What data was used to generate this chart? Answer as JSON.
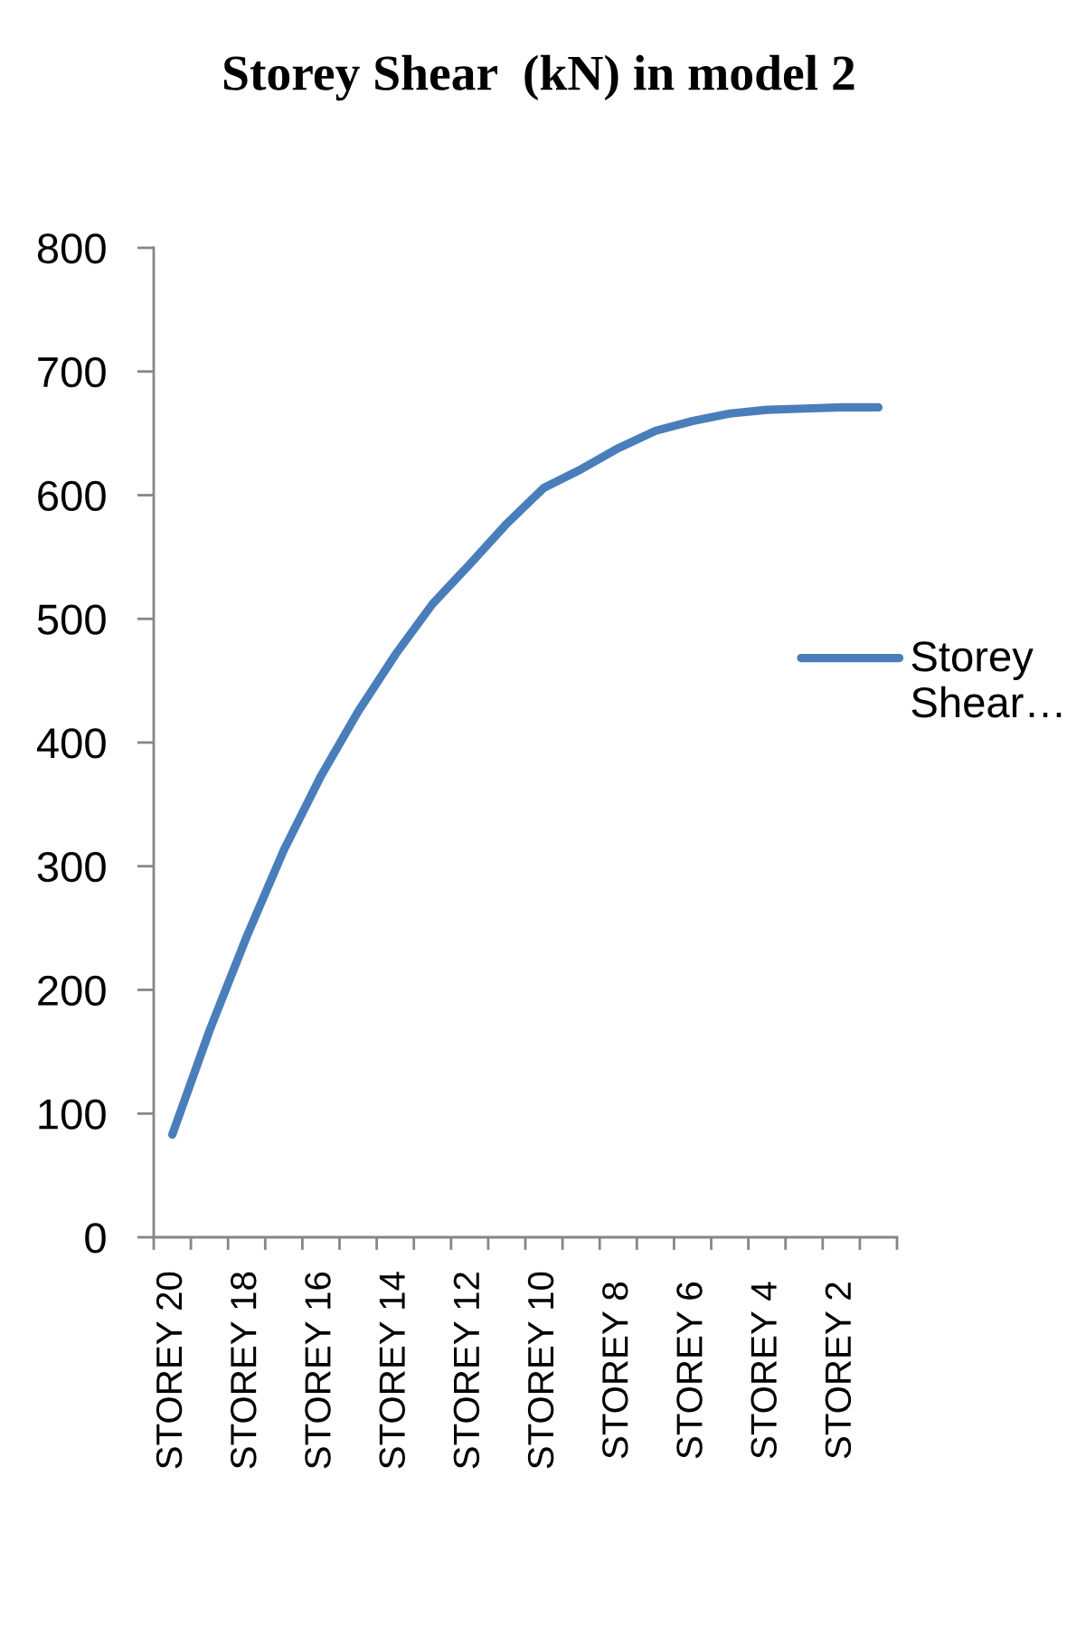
{
  "chart_data": {
    "type": "line",
    "title": "Storey Shear  (kN) in model 2",
    "categories": [
      "STOREY 20",
      null,
      "STOREY 18",
      null,
      "STOREY 16",
      null,
      "STOREY 14",
      null,
      "STOREY 12",
      null,
      "STOREY 10",
      null,
      "STOREY 8",
      null,
      "STOREY 6",
      null,
      "STOREY 4",
      null,
      "STOREY 2",
      null
    ],
    "series": [
      {
        "name": "Storey\nShear…",
        "color": "#4a7ebb",
        "values": [
          83,
          167,
          243,
          313,
          373,
          425,
          471,
          512,
          544,
          577,
          606,
          621,
          638,
          652,
          660,
          666,
          669,
          670,
          671,
          671
        ]
      }
    ],
    "ylim": [
      0,
      800
    ],
    "yticks": [
      0,
      100,
      200,
      300,
      400,
      500,
      600,
      700,
      800
    ],
    "legend": "right"
  }
}
